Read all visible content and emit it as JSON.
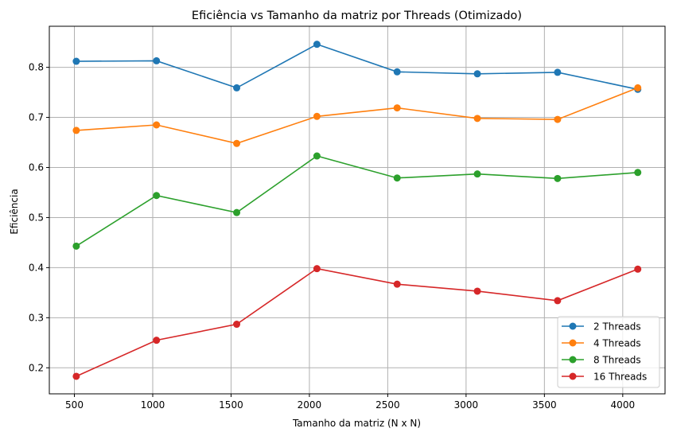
{
  "chart_data": {
    "type": "line",
    "title": "Eficiência vs Tamanho da matriz por Threads (Otimizado)",
    "xlabel": "Tamanho da matriz (N x N)",
    "ylabel": "Eficiência",
    "xlim": [
      340,
      4270
    ],
    "ylim": [
      0.148,
      0.882
    ],
    "xticks": [
      500,
      1000,
      1500,
      2000,
      2500,
      3000,
      3500,
      4000
    ],
    "yticks": [
      0.2,
      0.3,
      0.4,
      0.5,
      0.6,
      0.7,
      0.8
    ],
    "grid": true,
    "legend_position": "lower-right",
    "x": [
      512,
      1024,
      1536,
      2048,
      2560,
      3072,
      3584,
      4096
    ],
    "series": [
      {
        "name": "2 Threads",
        "color": "#1f77b4",
        "values": [
          0.812,
          0.813,
          0.759,
          0.846,
          0.791,
          0.787,
          0.79,
          0.756
        ]
      },
      {
        "name": "4 Threads",
        "color": "#ff7f0e",
        "values": [
          0.674,
          0.685,
          0.648,
          0.702,
          0.719,
          0.698,
          0.696,
          0.759
        ]
      },
      {
        "name": "8 Threads",
        "color": "#2ca02c",
        "values": [
          0.443,
          0.544,
          0.51,
          0.623,
          0.579,
          0.587,
          0.578,
          0.59
        ]
      },
      {
        "name": "16 Threads",
        "color": "#d62728",
        "values": [
          0.183,
          0.255,
          0.287,
          0.398,
          0.367,
          0.353,
          0.334,
          0.397
        ]
      }
    ]
  }
}
